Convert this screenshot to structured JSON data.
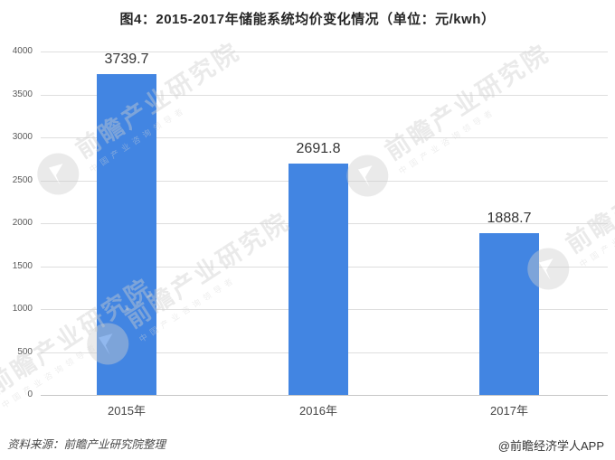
{
  "page": {
    "title": "图4：2015-2017年储能系统均价变化情况（单位：元/kwh）"
  },
  "chart_data": {
    "type": "bar",
    "title": "图4：2015-2017年储能系统均价变化情况（单位：元/kwh）",
    "unit": "元/kwh",
    "categories": [
      "2015年",
      "2016年",
      "2017年"
    ],
    "values": [
      3739.7,
      2691.8,
      1888.7
    ],
    "data_labels": [
      "3739.7",
      "2691.8",
      "1888.7"
    ],
    "xlabel": "",
    "ylabel": "",
    "ylim": [
      0,
      4000
    ],
    "ytick_step": 500,
    "yticks": [
      0,
      500,
      1000,
      1500,
      2000,
      2500,
      3000,
      3500,
      4000
    ],
    "grid": true,
    "legend_position": "none",
    "bar_color": "#4285E2"
  },
  "footer": {
    "source": "资料来源：前瞻产业研究院整理",
    "credit": "@前瞻经济学人APP"
  },
  "watermark": {
    "text": "前瞻产业研究院",
    "subtext": "中国产业咨询领导者",
    "logo": "qianzhan-logo"
  },
  "colors": {
    "bar": "#4285E2",
    "title_text": "#262626",
    "axis_label": "#595959",
    "gridline": "#DEDEDE",
    "axis_line": "#C7C7C7",
    "data_label": "#333333",
    "background": "#FFFFFF",
    "watermark": "#CFCFCF"
  }
}
